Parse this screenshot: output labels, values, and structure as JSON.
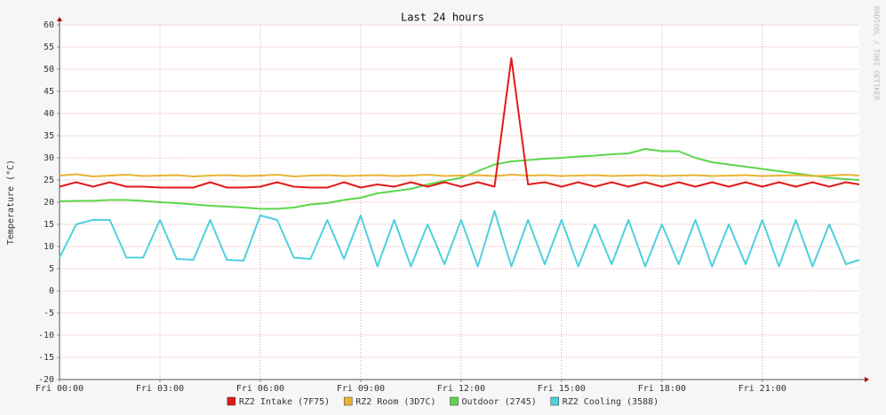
{
  "chart_data": {
    "type": "line",
    "title": "Last 24 hours",
    "y_label": "Temperature (°C)",
    "watermark": "RRDTOOL / TOBI OETIKER",
    "x": [
      0,
      0.5,
      1,
      1.5,
      2,
      2.5,
      3,
      3.5,
      4,
      4.5,
      5,
      5.5,
      6,
      6.5,
      7,
      7.5,
      8,
      8.5,
      9,
      9.5,
      10,
      10.5,
      11,
      11.5,
      12,
      12.5,
      13,
      13.5,
      14,
      14.5,
      15,
      15.5,
      16,
      16.5,
      17,
      17.5,
      18,
      18.5,
      19,
      19.5,
      20,
      20.5,
      21,
      21.5,
      22,
      22.5,
      23,
      23.5,
      23.9
    ],
    "xlim": [
      0,
      23.9
    ],
    "xticks": [
      {
        "value": 0,
        "label": "Fri 00:00"
      },
      {
        "value": 3,
        "label": "Fri 03:00"
      },
      {
        "value": 6,
        "label": "Fri 06:00"
      },
      {
        "value": 9,
        "label": "Fri 09:00"
      },
      {
        "value": 12,
        "label": "Fri 12:00"
      },
      {
        "value": 15,
        "label": "Fri 15:00"
      },
      {
        "value": 18,
        "label": "Fri 18:00"
      },
      {
        "value": 21,
        "label": "Fri 21:00"
      }
    ],
    "ylim": [
      -20,
      60
    ],
    "yticks": [
      -20,
      -15,
      -10,
      -5,
      0,
      5,
      10,
      15,
      20,
      25,
      30,
      35,
      40,
      45,
      50,
      55,
      60
    ],
    "grid": true,
    "legend": "bottom",
    "series": [
      {
        "name": "RZ2 Intake (7F75)",
        "color": "#e21a1a",
        "values": [
          23.5,
          24.5,
          23.5,
          24.5,
          23.5,
          23.5,
          23.3,
          23.3,
          23.3,
          24.5,
          23.3,
          23.3,
          23.5,
          24.5,
          23.5,
          23.3,
          23.3,
          24.5,
          23.3,
          24,
          23.5,
          24.5,
          23.5,
          24.5,
          23.5,
          24.5,
          23.5,
          52.5,
          24,
          24.5,
          23.5,
          24.5,
          23.5,
          24.5,
          23.5,
          24.5,
          23.5,
          24.5,
          23.5,
          24.5,
          23.5,
          24.5,
          23.5,
          24.5,
          23.5,
          24.5,
          23.5,
          24.5,
          24
        ]
      },
      {
        "name": "RZ2 Room (3D7C)",
        "color": "#e8b431",
        "values": [
          26,
          26.3,
          25.8,
          26,
          26.2,
          25.9,
          26,
          26.1,
          25.8,
          26,
          26.1,
          25.9,
          26,
          26.2,
          25.8,
          26,
          26.1,
          25.9,
          26,
          26.1,
          25.9,
          26,
          26.2,
          25.9,
          26,
          26.1,
          25.9,
          26.2,
          26,
          26.1,
          25.9,
          26,
          26.1,
          25.9,
          26,
          26.1,
          25.9,
          26,
          26.1,
          25.9,
          26,
          26.1,
          25.9,
          26,
          26.1,
          25.9,
          26,
          26.2,
          26
        ]
      },
      {
        "name": "Outdoor (2745)",
        "color": "#5cd64a",
        "values": [
          20.2,
          20.3,
          20.3,
          20.5,
          20.5,
          20.3,
          20,
          19.8,
          19.5,
          19.2,
          19,
          18.8,
          18.5,
          18.5,
          18.8,
          19.5,
          19.8,
          20.5,
          21,
          22,
          22.5,
          23,
          24,
          24.8,
          25.5,
          27,
          28.5,
          29.2,
          29.5,
          29.8,
          30,
          30.3,
          30.5,
          30.8,
          31,
          32,
          31.5,
          31.5,
          30,
          29,
          28.5,
          28,
          27.5,
          27,
          26.5,
          26,
          25.5,
          25.2,
          25
        ]
      },
      {
        "name": "RZ2 Cooling (3588)",
        "color": "#4fd0de",
        "values": [
          7.5,
          15,
          16,
          16,
          7.5,
          7.5,
          16,
          7.2,
          7,
          16,
          7,
          6.8,
          17,
          16,
          7.5,
          7.2,
          16,
          7.2,
          17,
          5.5,
          16,
          5.5,
          15,
          6,
          16,
          5.5,
          18,
          5.5,
          16,
          6,
          16,
          5.5,
          15,
          6,
          16,
          5.5,
          15,
          6,
          16,
          5.5,
          15,
          6,
          16,
          5.5,
          16,
          5.5,
          15,
          6,
          7
        ]
      }
    ]
  }
}
